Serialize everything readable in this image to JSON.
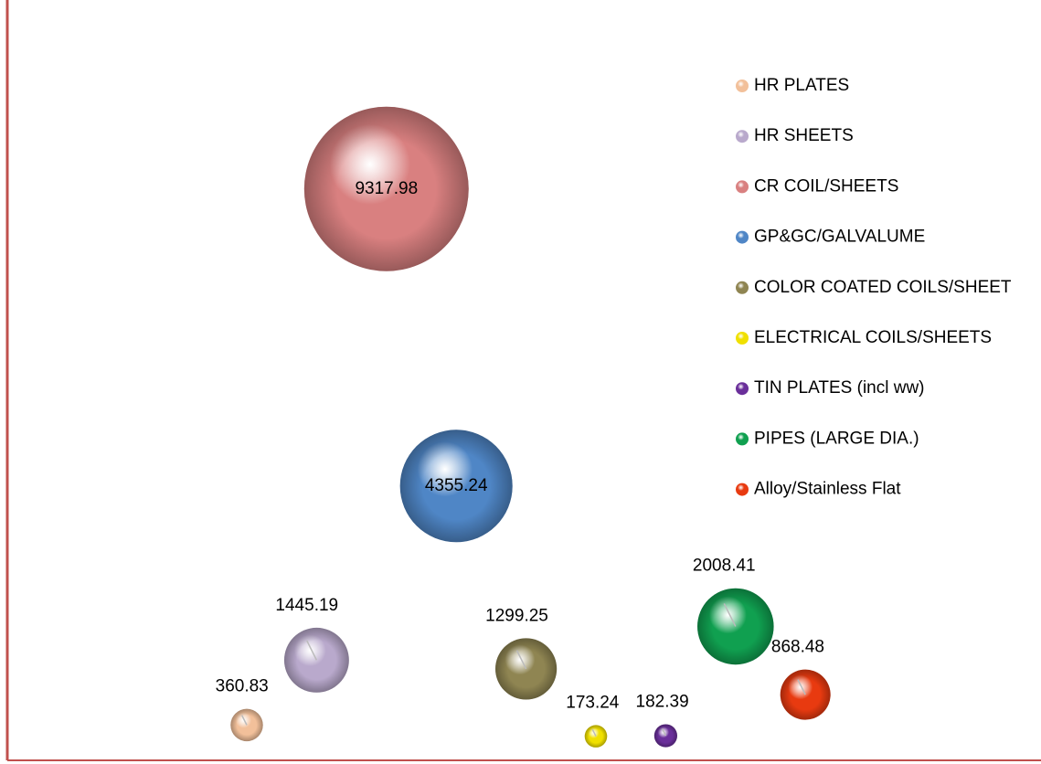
{
  "chart_data": {
    "type": "bubble",
    "categories": [
      "HR PLATES",
      "HR SHEETS",
      "CR COIL/SHEETS",
      "GP&GC/GALVALUME",
      "COLOR COATED COILS/SHEET",
      "ELECTRICAL COILS/SHEETS",
      "TIN PLATES (incl ww)",
      "PIPES (LARGE DIA.)",
      "Alloy/Stainless Flat"
    ],
    "values": [
      360.83,
      1445.19,
      9317.98,
      4355.24,
      1299.25,
      173.24,
      182.39,
      2008.41,
      868.48
    ],
    "colors": [
      "#f2c09a",
      "#b9a9cc",
      "#d98080",
      "#4f86c6",
      "#8f8552",
      "#f0e000",
      "#6a2f9a",
      "#10a050",
      "#e83a10"
    ],
    "ylim": [
      0,
      12170
    ],
    "legend": "right"
  }
}
